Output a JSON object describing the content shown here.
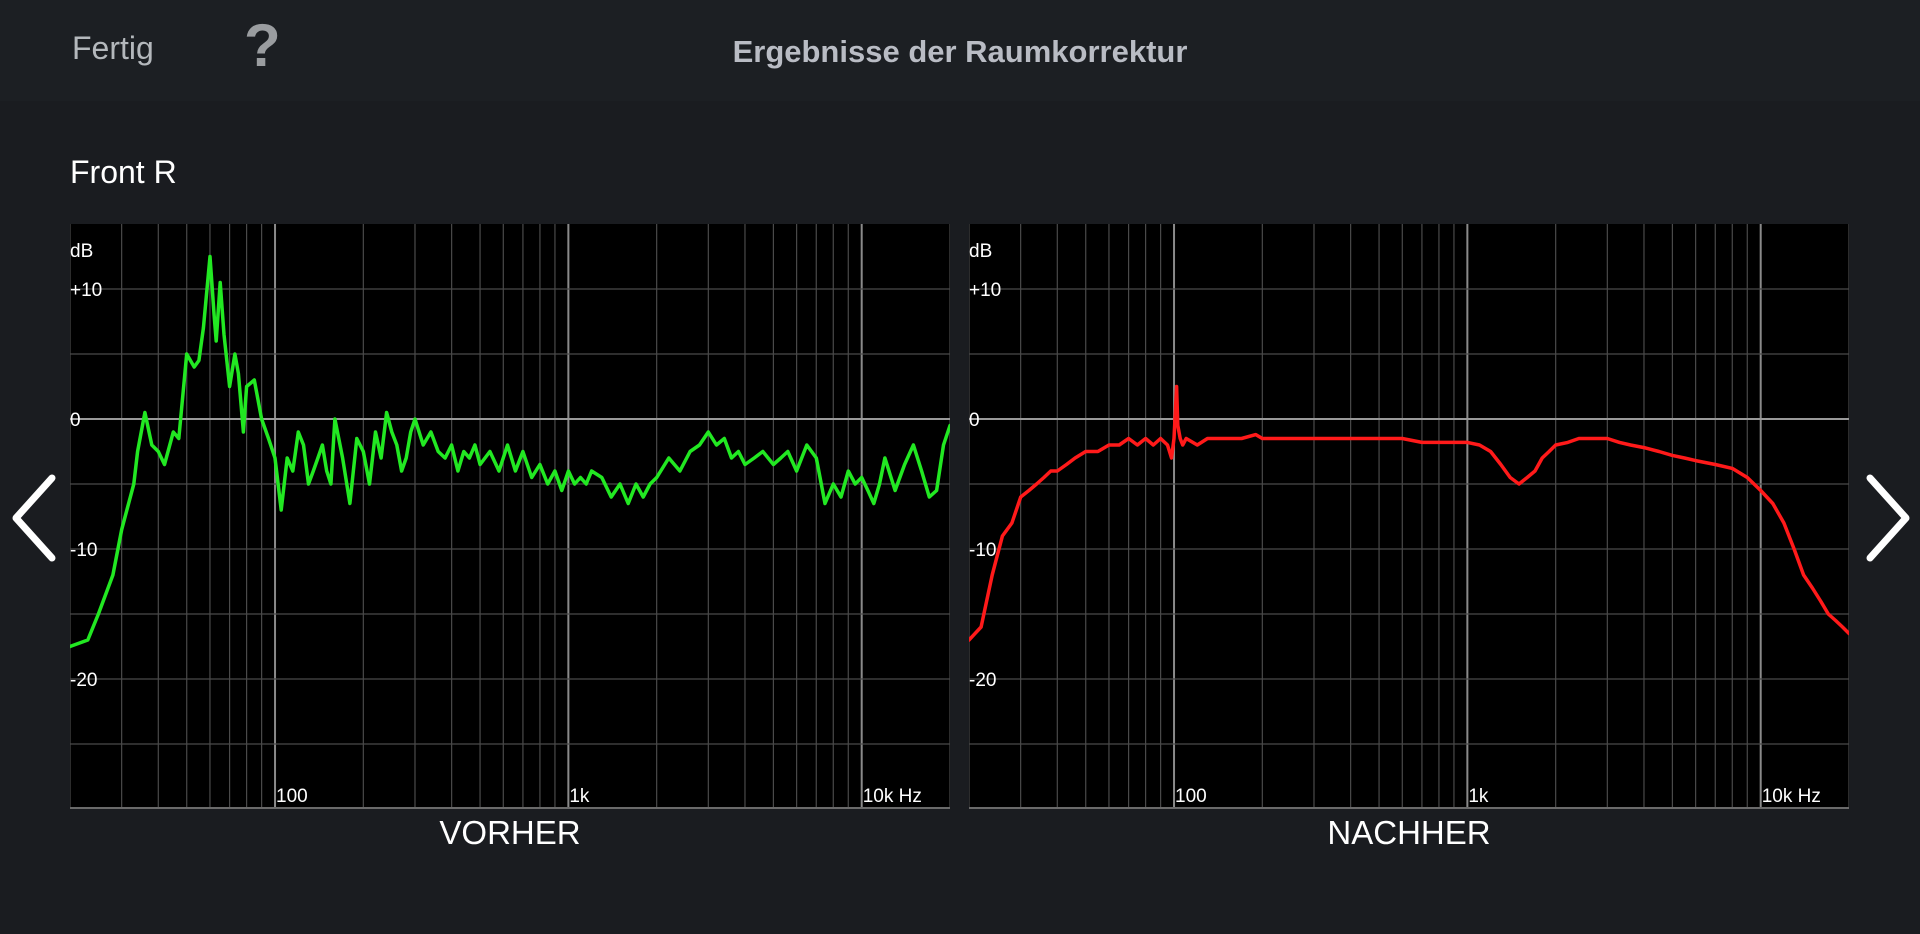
{
  "header": {
    "done_label": "Fertig",
    "help_icon": "question-mark-icon",
    "title": "Ergebnisse der Raumkorrektur"
  },
  "channel": "Front R",
  "nav": {
    "prev_icon": "chevron-left-icon",
    "next_icon": "chevron-right-icon"
  },
  "chart_data": [
    {
      "type": "line",
      "title": "",
      "caption": "VORHER",
      "ylabel": "dB",
      "xunit": "Hz",
      "xscale": "log",
      "xlim": [
        20,
        20000
      ],
      "ylim": [
        -30,
        15
      ],
      "yticks": [
        {
          "value": 10,
          "label": "+10"
        },
        {
          "value": 0,
          "label": "0"
        },
        {
          "value": -10,
          "label": "-10"
        },
        {
          "value": -20,
          "label": "-20"
        }
      ],
      "xticks": [
        {
          "value": 100,
          "label": "100"
        },
        {
          "value": 1000,
          "label": "1k"
        },
        {
          "value": 10000,
          "label": "10k Hz"
        }
      ],
      "color": "#22e822",
      "series": [
        {
          "x": [
            20,
            23,
            25,
            28,
            30,
            33,
            34,
            36,
            38,
            40,
            42,
            45,
            47,
            50,
            53,
            55,
            57,
            60,
            62,
            63,
            65,
            67,
            70,
            73,
            75,
            78,
            80,
            85,
            90,
            95,
            100,
            105,
            110,
            115,
            120,
            125,
            130,
            135,
            140,
            145,
            150,
            155,
            160,
            170,
            180,
            190,
            200,
            210,
            220,
            230,
            240,
            250,
            260,
            270,
            280,
            290,
            300,
            320,
            340,
            360,
            380,
            400,
            420,
            440,
            460,
            480,
            500,
            540,
            580,
            620,
            660,
            700,
            750,
            800,
            850,
            900,
            950,
            1000,
            1050,
            1100,
            1150,
            1200,
            1300,
            1400,
            1500,
            1600,
            1700,
            1800,
            1900,
            2000,
            2200,
            2400,
            2600,
            2800,
            3000,
            3200,
            3400,
            3600,
            3800,
            4000,
            4300,
            4600,
            5000,
            5300,
            5600,
            6000,
            6500,
            7000,
            7500,
            8000,
            8500,
            9000,
            9500,
            10000,
            10500,
            11000,
            11500,
            12000,
            13000,
            14000,
            15000,
            16000,
            17000,
            18000,
            19000,
            20000
          ],
          "values": [
            -17.5,
            -17,
            -15,
            -12,
            -8.5,
            -5,
            -2.5,
            0.5,
            -2,
            -2.5,
            -3.5,
            -1,
            -1.5,
            5,
            4,
            4.5,
            7,
            12.5,
            8,
            6,
            10.5,
            6.5,
            2.5,
            5,
            3.5,
            -1,
            2.5,
            3,
            0,
            -1.5,
            -3,
            -7,
            -3,
            -4,
            -1,
            -2,
            -5,
            -4,
            -3,
            -2,
            -4,
            -5,
            0,
            -3,
            -6.5,
            -1.5,
            -2.5,
            -5,
            -1,
            -3,
            0.5,
            -1,
            -2,
            -4,
            -3,
            -1,
            0,
            -2,
            -1,
            -2.5,
            -3,
            -2,
            -4,
            -2.5,
            -3,
            -2,
            -3.5,
            -2.5,
            -4,
            -2,
            -4,
            -2.5,
            -4.5,
            -3.5,
            -5,
            -4,
            -5.5,
            -4,
            -5,
            -4.5,
            -5,
            -4,
            -4.5,
            -6,
            -5,
            -6.5,
            -5,
            -6,
            -5,
            -4.5,
            -3,
            -4,
            -2.5,
            -2,
            -1,
            -2,
            -1.5,
            -3,
            -2.5,
            -3.5,
            -3,
            -2.5,
            -3.5,
            -3,
            -2.5,
            -4,
            -2,
            -3,
            -6.5,
            -5,
            -6,
            -4,
            -5,
            -4.5,
            -5.5,
            -6.5,
            -5,
            -3,
            -5.5,
            -3.5,
            -2,
            -4,
            -6,
            -5.5,
            -2,
            -0.5
          ]
        }
      ]
    },
    {
      "type": "line",
      "title": "",
      "caption": "NACHHER",
      "ylabel": "dB",
      "xunit": "Hz",
      "xscale": "log",
      "xlim": [
        20,
        20000
      ],
      "ylim": [
        -30,
        15
      ],
      "yticks": [
        {
          "value": 10,
          "label": "+10"
        },
        {
          "value": 0,
          "label": "0"
        },
        {
          "value": -10,
          "label": "-10"
        },
        {
          "value": -20,
          "label": "-20"
        }
      ],
      "xticks": [
        {
          "value": 100,
          "label": "100"
        },
        {
          "value": 1000,
          "label": "1k"
        },
        {
          "value": 10000,
          "label": "10k Hz"
        }
      ],
      "color": "#ff1a1a",
      "series": [
        {
          "x": [
            20,
            22,
            24,
            26,
            28,
            30,
            32,
            34,
            36,
            38,
            40,
            43,
            46,
            50,
            55,
            60,
            65,
            70,
            75,
            80,
            85,
            90,
            95,
            98,
            100,
            102,
            103,
            105,
            107,
            110,
            120,
            130,
            150,
            170,
            190,
            200,
            210,
            230,
            250,
            270,
            300,
            350,
            400,
            450,
            500,
            600,
            700,
            800,
            900,
            1000,
            1100,
            1200,
            1300,
            1400,
            1500,
            1600,
            1700,
            1800,
            1900,
            2000,
            2200,
            2400,
            2600,
            2800,
            3000,
            3300,
            3600,
            4000,
            4500,
            5000,
            5500,
            6000,
            7000,
            8000,
            9000,
            10000,
            11000,
            12000,
            13000,
            14000,
            15000,
            16000,
            17000,
            18000,
            19000,
            20000
          ],
          "values": [
            -17,
            -16,
            -12,
            -9,
            -8,
            -6,
            -5.5,
            -5,
            -4.5,
            -4,
            -4,
            -3.5,
            -3,
            -2.5,
            -2.5,
            -2,
            -2,
            -1.5,
            -2,
            -1.5,
            -2,
            -1.5,
            -2,
            -3,
            -1.5,
            2.5,
            -0.5,
            -1.5,
            -2,
            -1.5,
            -2,
            -1.5,
            -1.5,
            -1.5,
            -1.2,
            -1.5,
            -1.5,
            -1.5,
            -1.5,
            -1.5,
            -1.5,
            -1.5,
            -1.5,
            -1.5,
            -1.5,
            -1.5,
            -1.8,
            -1.8,
            -1.8,
            -1.8,
            -2,
            -2.5,
            -3.5,
            -4.5,
            -5,
            -4.5,
            -4,
            -3,
            -2.5,
            -2,
            -1.8,
            -1.5,
            -1.5,
            -1.5,
            -1.5,
            -1.8,
            -2,
            -2.2,
            -2.5,
            -2.8,
            -3,
            -3.2,
            -3.5,
            -3.8,
            -4.5,
            -5.5,
            -6.5,
            -8,
            -10,
            -12,
            -13,
            -14,
            -15,
            -15.5,
            -16,
            -16.5
          ]
        }
      ]
    }
  ]
}
